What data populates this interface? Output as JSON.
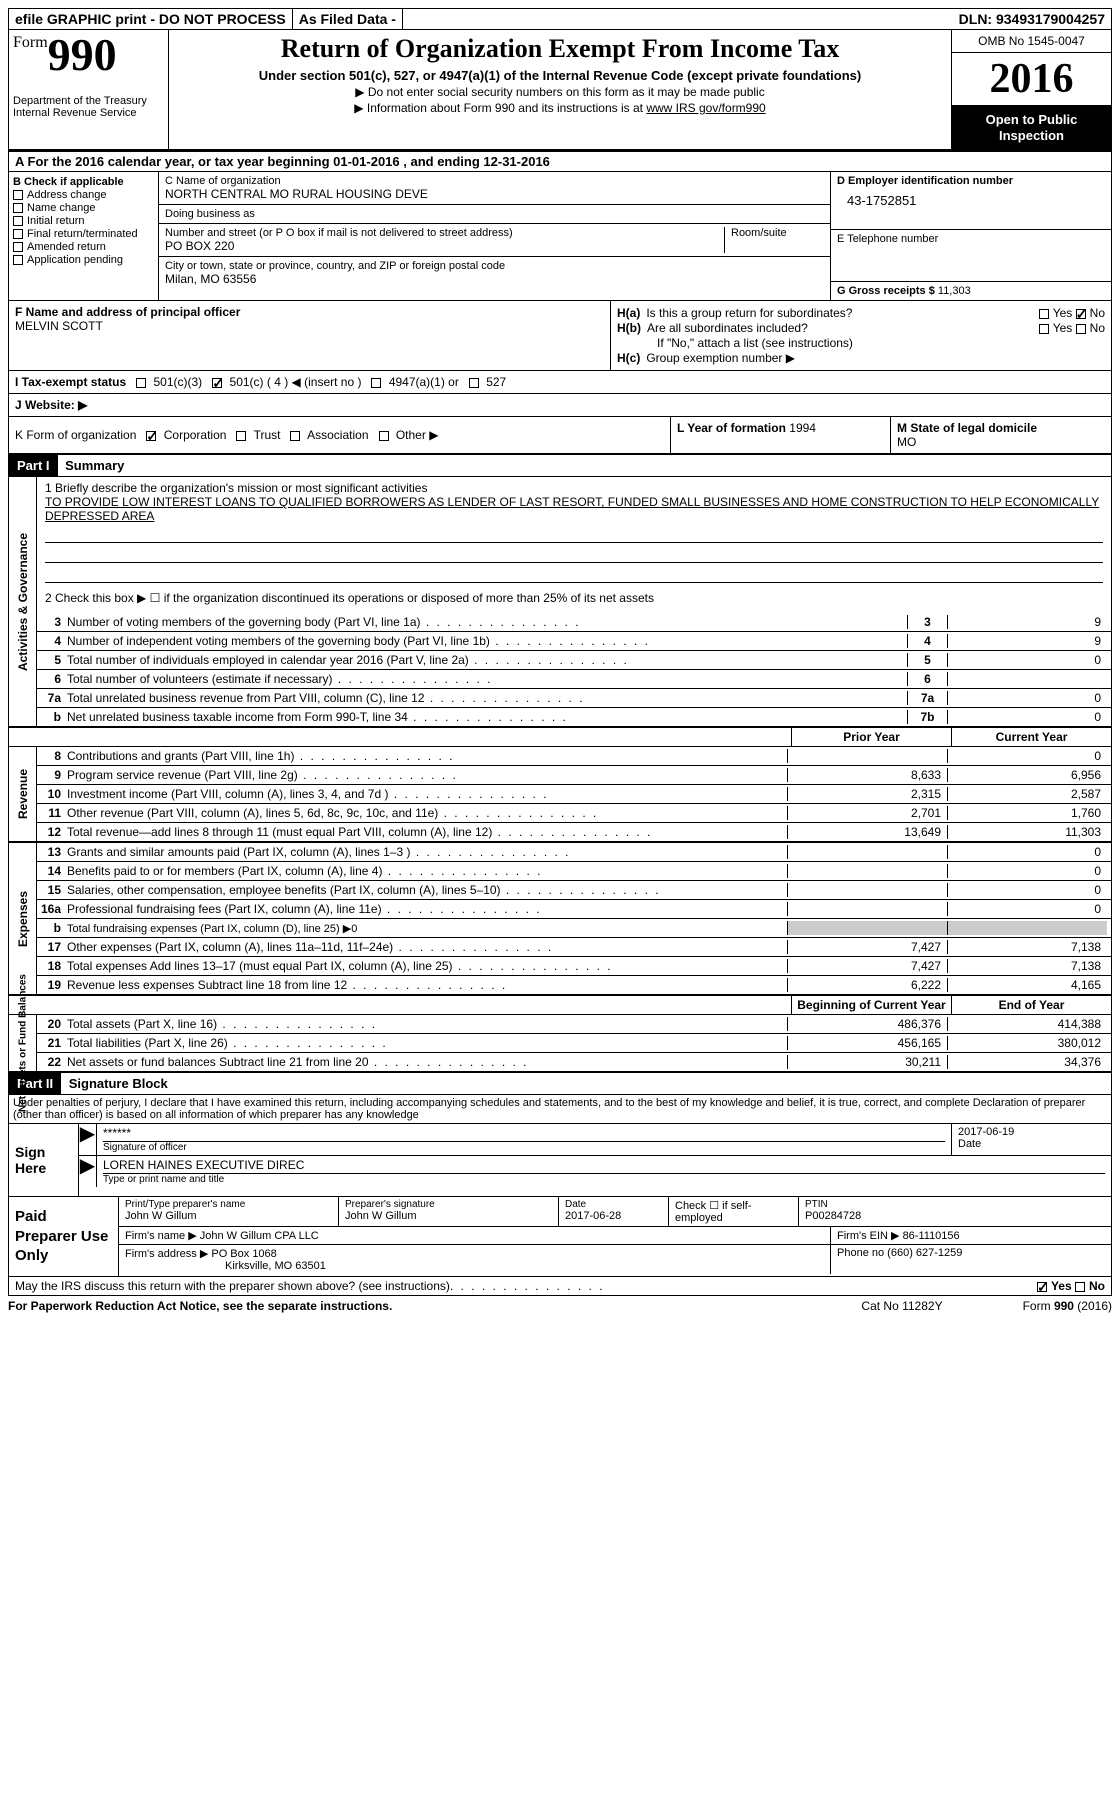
{
  "colors": {
    "black": "#000000",
    "white": "#ffffff"
  },
  "topbar": {
    "efile": "efile GRAPHIC print - DO NOT PROCESS",
    "asfiled": "As Filed Data -",
    "dln_label": "DLN:",
    "dln": "93493179004257"
  },
  "header": {
    "form_word": "Form",
    "form_num": "990",
    "dept": "Department of the Treasury\nInternal Revenue Service",
    "title": "Return of Organization Exempt From Income Tax",
    "subtitle": "Under section 501(c), 527, or 4947(a)(1) of the Internal Revenue Code (except private foundations)",
    "note1": "▶ Do not enter social security numbers on this form as it may be made public",
    "note2_pre": "▶ Information about Form 990 and its instructions is at ",
    "note2_link": "www IRS gov/form990",
    "omb": "OMB No  1545-0047",
    "year": "2016",
    "open": "Open to Public Inspection"
  },
  "row_a": "A   For the 2016 calendar year, or tax year beginning 01-01-2016   , and ending 12-31-2016",
  "section_b": {
    "title": "B Check if applicable",
    "items": [
      "Address change",
      "Name change",
      "Initial return",
      "Final return/terminated",
      "Amended return",
      "Application pending"
    ]
  },
  "section_c": {
    "name_lbl": "C Name of organization",
    "name": "NORTH CENTRAL MO RURAL HOUSING DEVE",
    "dba_lbl": "Doing business as",
    "dba": "",
    "street_lbl": "Number and street (or P O  box if mail is not delivered to street address)",
    "room_lbl": "Room/suite",
    "street": "PO BOX 220",
    "city_lbl": "City or town, state or province, country, and ZIP or foreign postal code",
    "city": "Milan, MO  63556"
  },
  "section_d": {
    "ein_lbl": "D Employer identification number",
    "ein": "43-1752851",
    "phone_lbl": "E Telephone number",
    "phone": "",
    "gross_lbl": "G Gross receipts $",
    "gross": "11,303"
  },
  "section_f": {
    "label": "F  Name and address of principal officer",
    "name": "MELVIN SCOTT"
  },
  "section_h": {
    "a_lbl": "Is this a group return for subordinates?",
    "a_yes": false,
    "a_no": true,
    "b_lbl": "Are all subordinates included?",
    "b_yes": false,
    "b_no": false,
    "b_note": "If \"No,\" attach a list  (see instructions)",
    "c_lbl": "Group exemption number ▶"
  },
  "row_i": {
    "label": "I  Tax-exempt status",
    "opts": [
      "501(c)(3)",
      "501(c) ( 4 ) ◀ (insert no )",
      "4947(a)(1) or",
      "527"
    ],
    "checked": 1
  },
  "row_j": {
    "label": "J  Website: ▶"
  },
  "row_k": {
    "label": "K Form of organization",
    "opts": [
      "Corporation",
      "Trust",
      "Association",
      "Other ▶"
    ],
    "checked": 0
  },
  "row_l": {
    "label": "L Year of formation",
    "val": "1994"
  },
  "row_m": {
    "label": "M State of legal domicile",
    "val": "MO"
  },
  "part1": {
    "tag": "Part I",
    "title": "Summary"
  },
  "mission": {
    "line1_lbl": "1  Briefly describe the organization's mission or most significant activities",
    "text": "TO PROVIDE LOW INTEREST LOANS TO QUALIFIED BORROWERS AS LENDER OF LAST RESORT, FUNDED SMALL BUSINESSES AND HOME CONSTRUCTION TO HELP ECONOMICALLY DEPRESSED AREA",
    "line2": "2   Check this box ▶ ☐ if the organization discontinued its operations or disposed of more than 25% of its net assets"
  },
  "gov_lines": [
    {
      "n": "3",
      "t": "Number of voting members of the governing body (Part VI, line 1a)",
      "box": "3",
      "v": "9"
    },
    {
      "n": "4",
      "t": "Number of independent voting members of the governing body (Part VI, line 1b)",
      "box": "4",
      "v": "9"
    },
    {
      "n": "5",
      "t": "Total number of individuals employed in calendar year 2016 (Part V, line 2a)",
      "box": "5",
      "v": "0"
    },
    {
      "n": "6",
      "t": "Total number of volunteers (estimate if necessary)",
      "box": "6",
      "v": ""
    },
    {
      "n": "7a",
      "t": "Total unrelated business revenue from Part VIII, column (C), line 12",
      "box": "7a",
      "v": "0"
    },
    {
      "n": "b",
      "t": "Net unrelated business taxable income from Form 990-T, line 34",
      "box": "7b",
      "v": "0"
    }
  ],
  "col_headers": {
    "prior": "Prior Year",
    "current": "Current Year"
  },
  "revenue": {
    "label": "Revenue",
    "lines": [
      {
        "n": "8",
        "t": "Contributions and grants (Part VIII, line 1h)",
        "p": "",
        "c": "0"
      },
      {
        "n": "9",
        "t": "Program service revenue (Part VIII, line 2g)",
        "p": "8,633",
        "c": "6,956"
      },
      {
        "n": "10",
        "t": "Investment income (Part VIII, column (A), lines 3, 4, and 7d )",
        "p": "2,315",
        "c": "2,587"
      },
      {
        "n": "11",
        "t": "Other revenue (Part VIII, column (A), lines 5, 6d, 8c, 9c, 10c, and 11e)",
        "p": "2,701",
        "c": "1,760"
      },
      {
        "n": "12",
        "t": "Total revenue—add lines 8 through 11 (must equal Part VIII, column (A), line 12)",
        "p": "13,649",
        "c": "11,303"
      }
    ]
  },
  "expenses": {
    "label": "Expenses",
    "lines": [
      {
        "n": "13",
        "t": "Grants and similar amounts paid (Part IX, column (A), lines 1–3 )",
        "p": "",
        "c": "0"
      },
      {
        "n": "14",
        "t": "Benefits paid to or for members (Part IX, column (A), line 4)",
        "p": "",
        "c": "0"
      },
      {
        "n": "15",
        "t": "Salaries, other compensation, employee benefits (Part IX, column (A), lines 5–10)",
        "p": "",
        "c": "0"
      },
      {
        "n": "16a",
        "t": "Professional fundraising fees (Part IX, column (A), line 11e)",
        "p": "",
        "c": "0"
      },
      {
        "n": "b",
        "t": "Total fundraising expenses (Part IX, column (D), line 25) ▶0",
        "p": "",
        "c": "",
        "noamt": true
      },
      {
        "n": "17",
        "t": "Other expenses (Part IX, column (A), lines 11a–11d, 11f–24e)",
        "p": "7,427",
        "c": "7,138"
      },
      {
        "n": "18",
        "t": "Total expenses  Add lines 13–17 (must equal Part IX, column (A), line 25)",
        "p": "7,427",
        "c": "7,138"
      },
      {
        "n": "19",
        "t": "Revenue less expenses  Subtract line 18 from line 12",
        "p": "6,222",
        "c": "4,165"
      }
    ]
  },
  "netassets": {
    "label": "Net Assets or Fund Balances",
    "h1": "Beginning of Current Year",
    "h2": "End of Year",
    "lines": [
      {
        "n": "20",
        "t": "Total assets (Part X, line 16)",
        "p": "486,376",
        "c": "414,388"
      },
      {
        "n": "21",
        "t": "Total liabilities (Part X, line 26)",
        "p": "456,165",
        "c": "380,012"
      },
      {
        "n": "22",
        "t": "Net assets or fund balances  Subtract line 21 from line 20",
        "p": "30,211",
        "c": "34,376"
      }
    ]
  },
  "part2": {
    "tag": "Part II",
    "title": "Signature Block"
  },
  "sig_intro": "Under penalties of perjury, I declare that I have examined this return, including accompanying schedules and statements, and to the best of my knowledge and belief, it is true, correct, and complete  Declaration of preparer (other than officer) is based on all information of which preparer has any knowledge",
  "sign": {
    "label": "Sign Here",
    "stars": "******",
    "sig_lbl": "Signature of officer",
    "date": "2017-06-19",
    "date_lbl": "Date",
    "name": "LOREN HAINES  EXECUTIVE DIREC",
    "name_lbl": "Type or print name and title"
  },
  "preparer": {
    "label": "Paid Preparer Use Only",
    "name_lbl": "Print/Type preparer's name",
    "name": "John W Gillum",
    "sig_lbl": "Preparer's signature",
    "sig": "John W Gillum",
    "date_lbl": "Date",
    "date": "2017-06-28",
    "check_lbl": "Check ☐ if self-employed",
    "ptin_lbl": "PTIN",
    "ptin": "P00284728",
    "firm_name_lbl": "Firm's name    ▶",
    "firm_name": "John W Gillum CPA LLC",
    "firm_ein_lbl": "Firm's EIN ▶",
    "firm_ein": "86-1110156",
    "firm_addr_lbl": "Firm's address ▶",
    "firm_addr": "PO Box 1068",
    "firm_city": "Kirksville, MO  63501",
    "phone_lbl": "Phone no",
    "phone": "(660) 627-1259"
  },
  "irs_discuss": {
    "text": "May the IRS discuss this return with the preparer shown above? (see instructions)",
    "yes": true,
    "no": false
  },
  "footer": {
    "pra": "For Paperwork Reduction Act Notice, see the separate instructions.",
    "cat": "Cat  No  11282Y",
    "form": "Form 990 (2016)"
  },
  "vlabels": {
    "gov": "Activities & Governance"
  }
}
